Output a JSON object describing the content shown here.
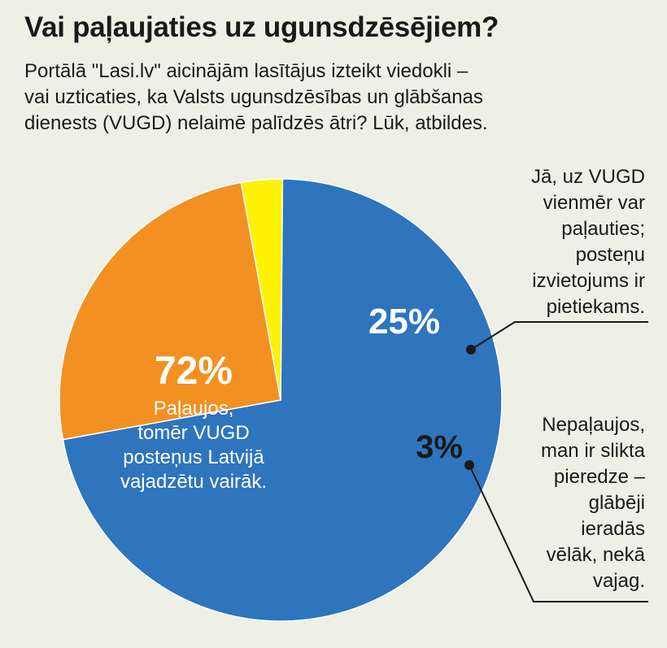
{
  "header": {
    "title": "Vai paļaujaties uz ugunsdzēsējiem?",
    "subtitle_lines": [
      "Portālā \"Lasi.lv\" aicinājām lasītājus izteikt viedokli –",
      "vai uzticaties, ka Valsts ugunsdzēsības un glābšanas",
      "dienests (VUGD) nelaimē palīdzēs ātri? Lūk, atbildes."
    ]
  },
  "chart_data": {
    "type": "pie",
    "title": "Vai paļaujaties uz ugunsdzēsējiem?",
    "slices": [
      {
        "value": 72,
        "value_label": "72%",
        "label_lines": [
          "Paļaujos,",
          "tomēr VUGD",
          "posteņus Latvijā",
          "vajadzētu vairāk."
        ],
        "color": "#2e75bd"
      },
      {
        "value": 25,
        "value_label": "25%",
        "label_lines": [
          "Jā, uz VUGD",
          "vienmēr var",
          "paļauties;",
          "posteņu",
          "izvietojums ir",
          "pietiekams."
        ],
        "color": "#f39022"
      },
      {
        "value": 3,
        "value_label": "3%",
        "label_lines": [
          "Nepaļaujos,",
          "man ir slikta",
          "pieredze –",
          "glābēji",
          "ieradās",
          "vēlāk, nekā",
          "vajag."
        ],
        "color": "#fff200"
      }
    ]
  },
  "colors": {
    "background": "#eef0e6",
    "text": "#1a1a1a",
    "slice_label_light": "#ffffff"
  }
}
